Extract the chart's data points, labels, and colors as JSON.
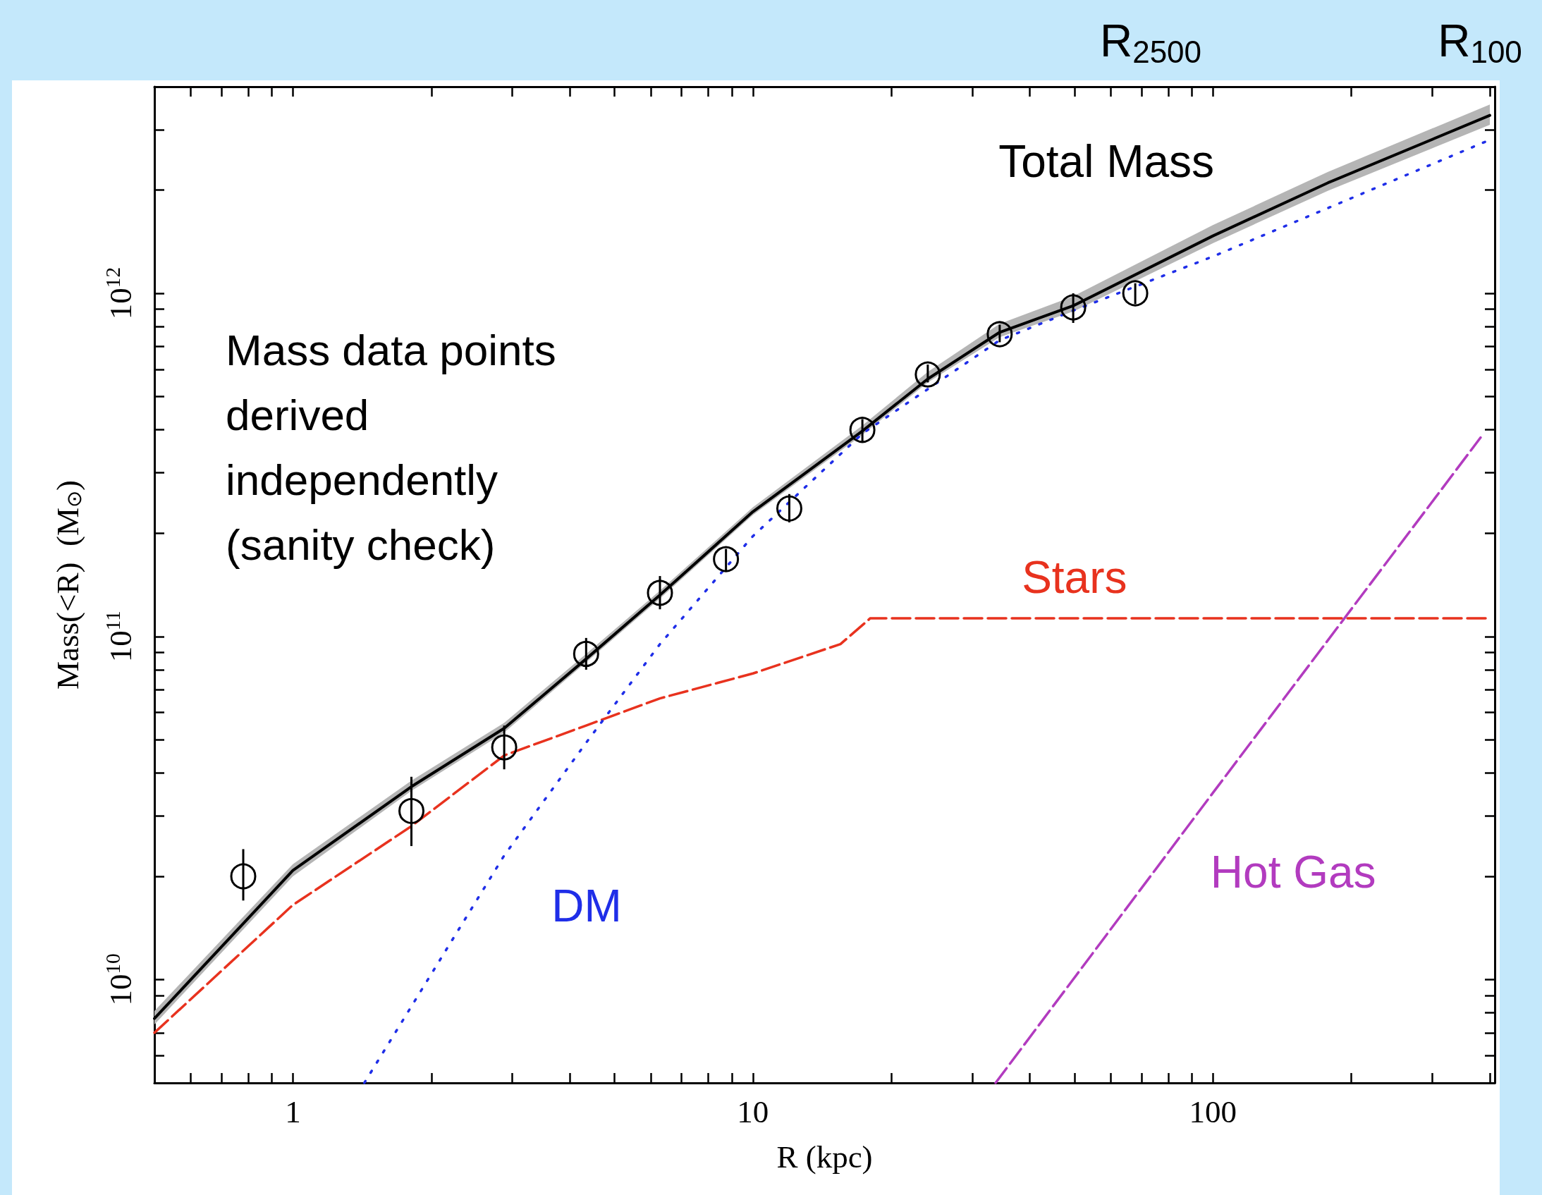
{
  "chart_data": {
    "type": "line",
    "xlabel": "R (kpc)",
    "ylabel": "Mass(<R)  (M$_{⊙}$)",
    "log": "xy",
    "grid": false,
    "xlim": [
      0.5,
      410
    ],
    "ylim": [
      5000000000.0,
      4000000000000.0
    ],
    "xticks": [
      {
        "value": 0.6,
        "label": null
      },
      {
        "value": 0.7,
        "label": null
      },
      {
        "value": 0.8,
        "label": null
      },
      {
        "value": 0.9,
        "label": null
      },
      1,
      {
        "value": 2,
        "label": null
      },
      {
        "value": 3,
        "label": null
      },
      {
        "value": 4,
        "label": null
      },
      {
        "value": 5,
        "label": null
      },
      {
        "value": 6,
        "label": null
      },
      {
        "value": 7,
        "label": null
      },
      {
        "value": 8,
        "label": null
      },
      {
        "value": 9,
        "label": null
      },
      10,
      {
        "value": 20,
        "label": null
      },
      {
        "value": 30,
        "label": null
      },
      {
        "value": 40,
        "label": null
      },
      {
        "value": 50,
        "label": null
      },
      {
        "value": 60,
        "label": null
      },
      {
        "value": 70,
        "label": null
      },
      {
        "value": 80,
        "label": null
      },
      {
        "value": 90,
        "label": null
      },
      100,
      {
        "value": 200,
        "label": null
      },
      {
        "value": 300,
        "label": null
      },
      {
        "value": 400,
        "label": null
      }
    ],
    "yticks": [
      {
        "value": 6000000000.0,
        "label": null
      },
      {
        "value": 7000000000.0,
        "label": null
      },
      {
        "value": 8000000000.0,
        "label": null
      },
      {
        "value": 9000000000.0,
        "label": null
      },
      {
        "value": 10000000000.0,
        "label": "10$^{10}$"
      },
      {
        "value": 20000000000.0,
        "label": null
      },
      {
        "value": 30000000000.0,
        "label": null
      },
      {
        "value": 40000000000.0,
        "label": null
      },
      {
        "value": 50000000000.0,
        "label": null
      },
      {
        "value": 60000000000.0,
        "label": null
      },
      {
        "value": 70000000000.0,
        "label": null
      },
      {
        "value": 80000000000.0,
        "label": null
      },
      {
        "value": 90000000000.0,
        "label": null
      },
      {
        "value": 100000000000.0,
        "label": "10$^{11}$"
      },
      {
        "value": 200000000000.0,
        "label": null
      },
      {
        "value": 300000000000.0,
        "label": null
      },
      {
        "value": 400000000000.0,
        "label": null
      },
      {
        "value": 500000000000.0,
        "label": null
      },
      {
        "value": 600000000000.0,
        "label": null
      },
      {
        "value": 700000000000.0,
        "label": null
      },
      {
        "value": 800000000000.0,
        "label": null
      },
      {
        "value": 900000000000.0,
        "label": null
      },
      {
        "value": 1000000000000.0,
        "label": "10$^{12}$"
      },
      {
        "value": 2000000000000.0,
        "label": null
      },
      {
        "value": 3000000000000.0,
        "label": null
      }
    ],
    "annotations": [
      "Mass data points derived independently (sanity check)",
      "R$_{2500}$",
      "R$_{100}$"
    ],
    "series": [
      {
        "type": "scatter",
        "marker": "circle",
        "color": "#000000",
        "x": [
          0.78,
          1.81,
          2.88,
          4.34,
          6.28,
          8.74,
          12.0,
          17.3,
          24.0,
          34.4,
          49.7,
          67.8
        ],
        "values": [
          20000000000.0,
          31000000000.0,
          47500000000.0,
          89000000000.0,
          134000000000.0,
          168000000000.0,
          236000000000.0,
          400000000000.0,
          580000000000.0,
          760000000000.0,
          910000000000.0,
          1000000000000.0
        ],
        "errors": [
          [
            17000000000.0,
            24000000000.0
          ],
          [
            24500000000.0,
            39000000000.0
          ],
          [
            41000000000.0,
            55000000000.0
          ],
          [
            80000000000.0,
            99000000000.0
          ],
          [
            120000000000.0,
            150000000000.0
          ],
          [
            155000000000.0,
            180000000000.0
          ],
          [
            215000000000.0,
            260000000000.0
          ],
          [
            370000000000.0,
            430000000000.0
          ],
          [
            550000000000.0,
            620000000000.0
          ],
          [
            720000000000.0,
            810000000000.0
          ],
          [
            820000000000.0,
            1000000000000.0
          ],
          [
            930000000000.0,
            1070000000000.0
          ]
        ]
      },
      {
        "name": "Total Mass",
        "marker": "none",
        "line_style": "solid",
        "color": "#000000",
        "x": [
          0.5,
          1,
          1.81,
          2.88,
          4.34,
          6.28,
          10,
          17.3,
          24,
          34.4,
          49.7,
          100,
          178,
          400
        ],
        "values": [
          7700000000.0,
          20800000000.0,
          36500000000.0,
          54000000000.0,
          86000000000.0,
          132000000000.0,
          231000000000.0,
          397000000000.0,
          563000000000.0,
          770000000000.0,
          920000000000.0,
          1470000000000.0,
          2100000000000.0,
          3300000000000.0
        ],
        "lower": [
          7400000000.0,
          20000000000.0,
          35500000000.0,
          52500000000.0,
          84000000000.0,
          129000000000.0,
          226000000000.0,
          387000000000.0,
          550000000000.0,
          745000000000.0,
          885000000000.0,
          1400000000000.0,
          1990000000000.0,
          3100000000000.0
        ],
        "upper": [
          8100000000.0,
          21700000000.0,
          38000000000.0,
          56000000000.0,
          89000000000.0,
          136000000000.0,
          238000000000.0,
          412000000000.0,
          590000000000.0,
          815000000000.0,
          980000000000.0,
          1580000000000.0,
          2260000000000.0,
          3550000000000.0
        ]
      },
      {
        "name": "Stars",
        "marker": "none",
        "line_style": "dashed",
        "color": "#e8321e",
        "x": [
          0.5,
          1,
          1.81,
          2.88,
          4.34,
          6.28,
          10,
          15.5,
          18,
          50,
          400
        ],
        "values": [
          7000000000.0,
          16500000000.0,
          28000000000.0,
          45000000000.0,
          55000000000.0,
          66000000000.0,
          78000000000.0,
          95000000000.0,
          113000000000.0,
          113000000000.0,
          113000000000.0
        ]
      },
      {
        "name": "DM",
        "marker": "none",
        "line_style": "dotted",
        "color": "#1f2ee8",
        "x": [
          1.43,
          2.88,
          4.34,
          6.28,
          10,
          17.3,
          34.4,
          49.7,
          100,
          400
        ],
        "values": [
          5000000000.0,
          23000000000.0,
          49000000000.0,
          95000000000.0,
          196000000000.0,
          390000000000.0,
          730000000000.0,
          890000000000.0,
          1280000000000.0,
          2800000000000.0
        ]
      },
      {
        "name": "Hot Gas",
        "marker": "none",
        "line_style": "dashed",
        "color": "#b23bbf",
        "x": [
          33.7,
          100,
          382
        ],
        "values": [
          5000000000.0,
          35000000000.0,
          380000000000.0
        ]
      }
    ]
  }
}
